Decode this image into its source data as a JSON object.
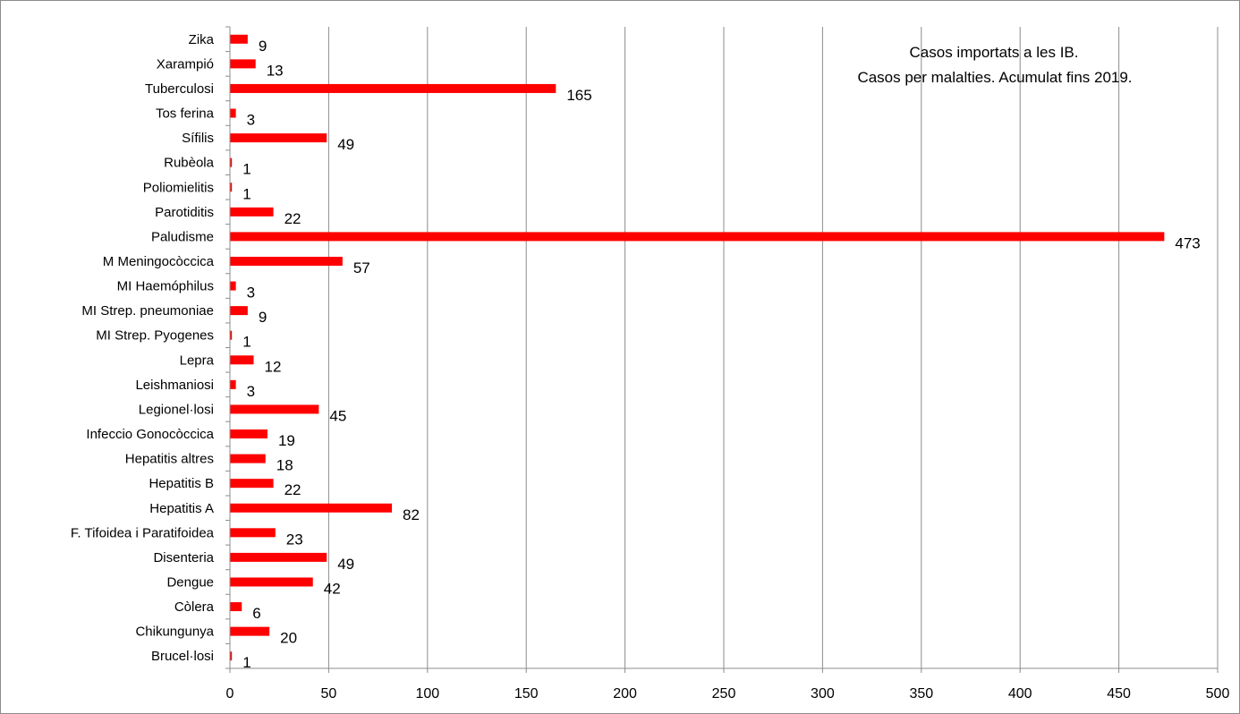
{
  "chart_data": {
    "type": "bar",
    "orientation": "horizontal",
    "title": "Casos importats a les IB.",
    "subtitle": "Casos per malalties. Acumulat fins 2019.",
    "categories": [
      "Zika",
      "Xarampió",
      "Tuberculosi",
      "Tos ferina",
      "Sífilis",
      "Rubèola",
      "Poliomielitis",
      "Parotiditis",
      "Paludisme",
      "M Meningocòccica",
      "MI Haemóphilus",
      "MI Strep. pneumoniae",
      "MI Strep. Pyogenes",
      "Lepra",
      "Leishmaniosi",
      "Legionel·losi",
      "Infeccio Gonocòccica",
      "Hepatitis altres",
      "Hepatitis B",
      "Hepatitis A",
      "F. Tifoidea i Paratifoidea",
      "Disenteria",
      "Dengue",
      "Còlera",
      "Chikungunya",
      "Brucel·losi"
    ],
    "values": [
      9,
      13,
      165,
      3,
      49,
      1,
      1,
      22,
      473,
      57,
      3,
      9,
      1,
      12,
      3,
      45,
      19,
      18,
      22,
      82,
      23,
      49,
      42,
      6,
      20,
      1
    ],
    "data_labels": [
      "9",
      "13",
      "165",
      "3",
      "49",
      "1",
      "1",
      "22",
      "473",
      "57",
      "3",
      "9",
      "1",
      "12",
      "3",
      "45",
      "19",
      "18",
      "22",
      "82",
      "23",
      "49",
      "42",
      "6",
      "20",
      "1"
    ],
    "xlim": [
      0,
      500
    ],
    "x_ticks": [
      0,
      50,
      100,
      150,
      200,
      250,
      300,
      350,
      400,
      450,
      500
    ],
    "x_tick_labels": [
      "0",
      "50",
      "100",
      "150",
      "200",
      "250",
      "300",
      "350",
      "400",
      "450",
      "500"
    ],
    "xlabel": "",
    "ylabel": "",
    "grid": "vertical",
    "legend": "none",
    "bar_color": "#ff0000",
    "grid_color": "#8c8c8c"
  }
}
